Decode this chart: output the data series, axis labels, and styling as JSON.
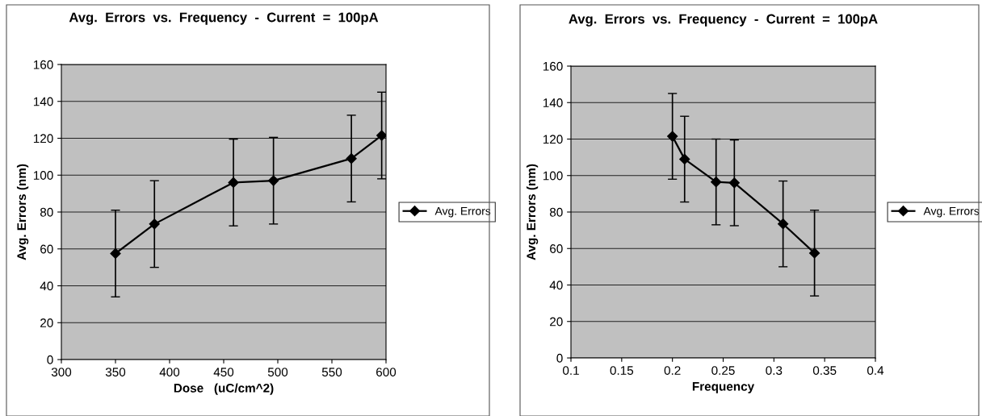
{
  "chart_data": [
    {
      "type": "line",
      "title": "Avg.  Errors  vs.  Frequency  -  Current  =  100pA",
      "xlabel": "Dose   (uC/cm^2)",
      "ylabel": "Avg. Errors (nm)",
      "x": [
        350,
        386,
        459,
        496,
        568,
        596
      ],
      "series": [
        {
          "name": "Avg. Errors",
          "color": "#000000",
          "values": [
            57.5,
            73.5,
            96,
            97,
            109,
            121.5
          ],
          "errors": [
            23.5,
            23.5,
            23.5,
            23.5,
            23.5,
            23.5
          ]
        }
      ],
      "xlim": [
        300,
        600
      ],
      "xticks": [
        300,
        350,
        400,
        450,
        500,
        550,
        600
      ],
      "ylim": [
        0,
        160
      ],
      "yticks": [
        0,
        20,
        40,
        60,
        80,
        100,
        120,
        140,
        160
      ],
      "grid": "y",
      "legend": "right",
      "marker": "diamond",
      "line_style": "solid"
    },
    {
      "type": "line",
      "title": "Avg.  Errors  vs.  Frequency  -  Current  =  100pA",
      "xlabel": "Frequency",
      "ylabel": "Avg. Errors (nm)",
      "x": [
        0.2,
        0.212,
        0.243,
        0.261,
        0.309,
        0.34
      ],
      "series": [
        {
          "name": "Avg. Errors",
          "color": "#000000",
          "values": [
            121.5,
            109,
            96.5,
            96,
            73.5,
            57.5
          ],
          "errors": [
            23.5,
            23.5,
            23.5,
            23.5,
            23.5,
            23.5
          ]
        }
      ],
      "xlim": [
        0.1,
        0.4
      ],
      "xticks": [
        0.1,
        0.15,
        0.2,
        0.25,
        0.3,
        0.35,
        0.4
      ],
      "ylim": [
        0,
        160
      ],
      "yticks": [
        0,
        20,
        40,
        60,
        80,
        100,
        120,
        140,
        160
      ],
      "grid": "y",
      "legend": "right",
      "marker": "diamond",
      "line_style": "solid"
    }
  ]
}
